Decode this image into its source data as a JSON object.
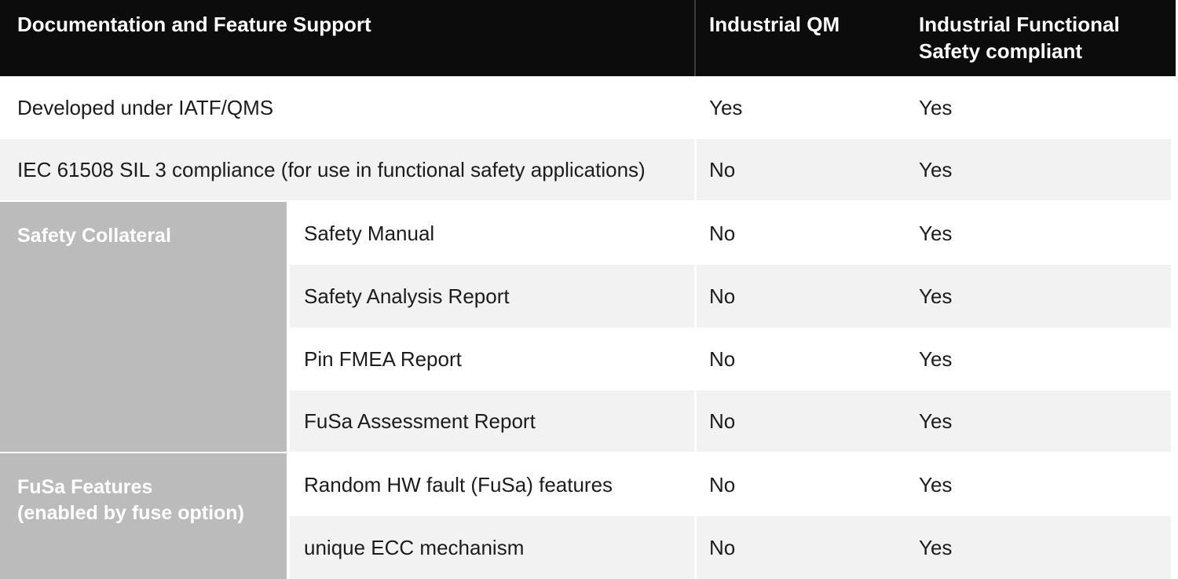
{
  "colors": {
    "header_bg": "#0c0c0c",
    "header_text": "#ffffff",
    "header_divider": "#3d3d3d",
    "row_white": "#ffffff",
    "row_alt": "#f2f2f2",
    "group_bg": "#bbbbbb",
    "group_text": "#ffffff",
    "body_text": "#1c1c1c",
    "divider": "#ffffff"
  },
  "table": {
    "header": {
      "feature_column": "Documentation and Feature Support",
      "qm_column": "Industrial QM",
      "fusa_column": "Industrial Functional\nSafety compliant"
    },
    "rows": [
      {
        "feature": "Developed under IATF/QMS",
        "qm": "Yes",
        "fusa": "Yes"
      },
      {
        "feature": "IEC 61508 SIL 3 compliance (for use in functional safety applications)",
        "qm": "No",
        "fusa": "Yes"
      }
    ],
    "groups": [
      {
        "label": "Safety Collateral",
        "rows": [
          {
            "feature": "Safety Manual",
            "qm": "No",
            "fusa": "Yes"
          },
          {
            "feature": "Safety Analysis Report",
            "qm": "No",
            "fusa": "Yes"
          },
          {
            "feature": "Pin FMEA Report",
            "qm": "No",
            "fusa": "Yes"
          },
          {
            "feature": "FuSa Assessment Report",
            "qm": "No",
            "fusa": "Yes"
          }
        ]
      },
      {
        "label": "FuSa Features\n(enabled by fuse option)",
        "rows": [
          {
            "feature": "Random HW fault (FuSa) features",
            "qm": "No",
            "fusa": "Yes"
          },
          {
            "feature": "unique ECC mechanism",
            "qm": "No",
            "fusa": "Yes"
          }
        ]
      }
    ]
  }
}
